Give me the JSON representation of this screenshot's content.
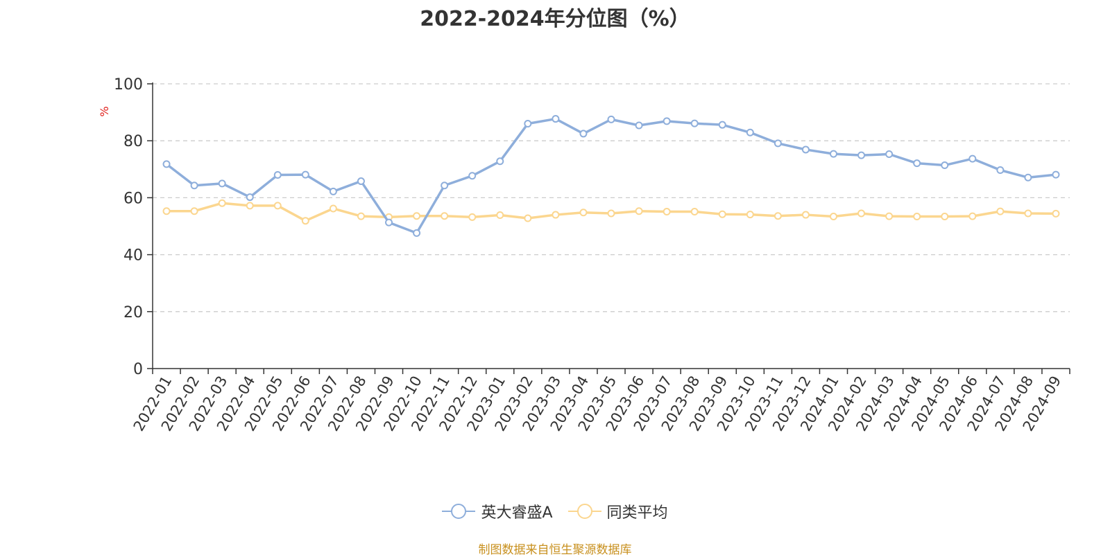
{
  "chart_data": {
    "type": "line",
    "title": "2022-2024年分位图（%）",
    "ylabel": "%",
    "xlabel": "",
    "ylim": [
      0,
      100
    ],
    "yticks": [
      0,
      20,
      40,
      60,
      80,
      100
    ],
    "grid": "horizontal dashed",
    "legend_position": "bottom-center",
    "categories": [
      "2022-01",
      "2022-02",
      "2022-03",
      "2022-04",
      "2022-05",
      "2022-06",
      "2022-07",
      "2022-08",
      "2022-09",
      "2022-10",
      "2022-11",
      "2022-12",
      "2023-01",
      "2023-02",
      "2023-03",
      "2023-04",
      "2023-05",
      "2023-06",
      "2023-07",
      "2023-08",
      "2023-09",
      "2023-10",
      "2023-11",
      "2023-12",
      "2024-01",
      "2024-02",
      "2024-03",
      "2024-04",
      "2024-05",
      "2024-06",
      "2024-07",
      "2024-08",
      "2024-09"
    ],
    "series": [
      {
        "name": "英大睿盛A",
        "color": "#8eaedb",
        "values": [
          71.8,
          64.3,
          65.0,
          60.2,
          68.0,
          68.1,
          62.2,
          65.8,
          51.3,
          47.6,
          64.3,
          67.7,
          72.8,
          86.0,
          87.7,
          82.5,
          87.5,
          85.4,
          86.9,
          86.1,
          85.6,
          82.9,
          79.1,
          76.9,
          75.4,
          74.9,
          75.3,
          72.1,
          71.4,
          73.7,
          69.7,
          67.1,
          68.1
        ]
      },
      {
        "name": "同类平均",
        "color": "#fbd68f",
        "values": [
          55.3,
          55.3,
          58.1,
          57.2,
          57.2,
          51.9,
          56.2,
          53.5,
          53.2,
          53.6,
          53.6,
          53.2,
          53.9,
          52.8,
          54.0,
          54.8,
          54.5,
          55.3,
          55.1,
          55.1,
          54.2,
          54.1,
          53.6,
          54.0,
          53.4,
          54.5,
          53.5,
          53.4,
          53.4,
          53.5,
          55.2,
          54.5,
          54.4
        ]
      }
    ]
  },
  "source_note": "制图数据来自恒生聚源数据库"
}
